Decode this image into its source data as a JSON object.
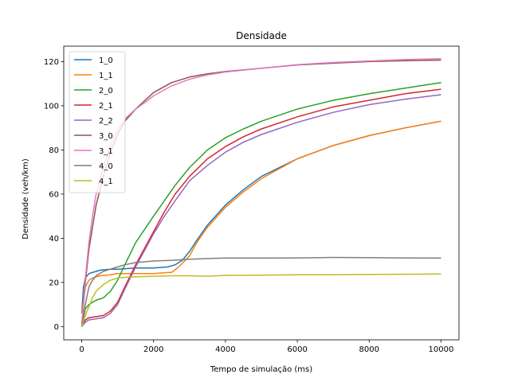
{
  "chart_data": {
    "type": "line",
    "title": "Densidade",
    "xlabel": "Tempo de simulação (ms)",
    "ylabel": "Densidade (veh/km)",
    "xlim": [
      -500,
      10500
    ],
    "ylim": [
      -6,
      127
    ],
    "xticks": [
      0,
      2000,
      4000,
      6000,
      8000,
      10000
    ],
    "yticks": [
      0,
      20,
      40,
      60,
      80,
      100,
      120
    ],
    "grid": false,
    "legend_position": "upper-left",
    "series": [
      {
        "name": "1_0",
        "color": "#1f77b4",
        "x": [
          0,
          50,
          100,
          200,
          300,
          500,
          800,
          1000,
          1500,
          2000,
          2400,
          2600,
          2800,
          3000,
          3200,
          3500,
          4000,
          4500,
          5000,
          6000,
          7000,
          8000,
          9000,
          10000
        ],
        "y": [
          6,
          18,
          22,
          24,
          24.5,
          25.5,
          26,
          26,
          26.5,
          26.5,
          27,
          28,
          30,
          34,
          39,
          46,
          55,
          62,
          68,
          76,
          82,
          86.5,
          90,
          93
        ]
      },
      {
        "name": "1_1",
        "color": "#ff7f0e",
        "x": [
          0,
          50,
          100,
          200,
          300,
          500,
          800,
          1000,
          1500,
          2000,
          2400,
          2500,
          2700,
          3000,
          3200,
          3500,
          4000,
          4500,
          5000,
          6000,
          7000,
          8000,
          9000,
          10000
        ],
        "y": [
          6,
          12,
          18,
          21,
          22,
          23,
          23.5,
          24,
          24,
          24,
          24.5,
          24.5,
          27,
          32,
          38,
          45,
          54,
          61,
          67,
          76,
          82,
          86.5,
          90,
          93
        ]
      },
      {
        "name": "2_0",
        "color": "#2ca02c",
        "x": [
          0,
          100,
          200,
          400,
          600,
          800,
          1000,
          1200,
          1500,
          2000,
          2300,
          2600,
          3000,
          3500,
          4000,
          4500,
          5000,
          6000,
          7000,
          8000,
          9000,
          10000
        ],
        "y": [
          0,
          8,
          10,
          12,
          13,
          16,
          21,
          28,
          38,
          50,
          57,
          64,
          72,
          80,
          85.5,
          89.5,
          93,
          98.5,
          102.5,
          105.5,
          108,
          110.5
        ]
      },
      {
        "name": "2_1",
        "color": "#d62728",
        "x": [
          0,
          100,
          200,
          400,
          600,
          800,
          1000,
          1200,
          1500,
          2000,
          2300,
          2600,
          3000,
          3500,
          4000,
          4500,
          5000,
          6000,
          7000,
          8000,
          9000,
          10000
        ],
        "y": [
          0,
          3,
          4,
          4.5,
          5,
          7,
          11,
          18,
          28,
          43,
          52,
          60,
          68,
          76,
          81.5,
          86,
          89.5,
          95,
          99.5,
          102.5,
          105.5,
          107.5
        ]
      },
      {
        "name": "2_2",
        "color": "#9467bd",
        "x": [
          0,
          100,
          200,
          400,
          600,
          800,
          1000,
          1200,
          1500,
          2000,
          2300,
          2600,
          3000,
          3500,
          4000,
          4500,
          5000,
          6000,
          7000,
          8000,
          9000,
          10000
        ],
        "y": [
          0,
          2,
          3,
          3.5,
          4,
          6,
          10,
          17,
          27,
          42,
          50,
          57,
          66,
          73,
          79,
          83.5,
          87,
          92.5,
          97,
          100.5,
          103,
          105
        ]
      },
      {
        "name": "3_0",
        "color": "#8c564b",
        "x": [
          0,
          100,
          200,
          300,
          400,
          600,
          800,
          1000,
          1200,
          1500,
          1800,
          2000,
          2500,
          3000,
          3500,
          4000,
          5000,
          6000,
          7000,
          8000,
          9000,
          10000
        ],
        "y": [
          0,
          20,
          35,
          45,
          55,
          68,
          79,
          87,
          93,
          98.5,
          103,
          106,
          110.5,
          113,
          114.5,
          115.5,
          117,
          118.5,
          119.3,
          120,
          120.4,
          120.7
        ]
      },
      {
        "name": "3_1",
        "color": "#e377c2",
        "x": [
          0,
          100,
          200,
          300,
          400,
          600,
          800,
          1000,
          1200,
          1500,
          1800,
          2000,
          2500,
          3000,
          3500,
          4000,
          5000,
          6000,
          7000,
          8000,
          9000,
          10000
        ],
        "y": [
          0,
          22,
          38,
          50,
          60,
          72,
          82,
          89,
          94,
          98.5,
          102,
          104.5,
          109,
          112,
          114,
          115.3,
          117,
          118.6,
          119.6,
          120.3,
          120.9,
          121.3
        ]
      },
      {
        "name": "4_0",
        "color": "#7f7f7f",
        "x": [
          0,
          100,
          200,
          300,
          400,
          600,
          800,
          1000,
          1200,
          1500,
          2000,
          2500,
          3000,
          3500,
          4000,
          5000,
          6000,
          7000,
          8000,
          9000,
          10000
        ],
        "y": [
          0,
          10,
          18,
          21,
          23,
          25,
          26,
          27,
          28,
          29,
          29.7,
          30,
          30.5,
          30.8,
          31,
          31,
          31.1,
          31.3,
          31.2,
          31.1,
          31
        ]
      },
      {
        "name": "4_1",
        "color": "#bcbd22",
        "x": [
          0,
          100,
          200,
          300,
          400,
          600,
          800,
          1000,
          1200,
          1500,
          2000,
          2500,
          3000,
          3500,
          4000,
          5000,
          6000,
          7000,
          8000,
          9000,
          10000
        ],
        "y": [
          0,
          5,
          9,
          13,
          16,
          19,
          21,
          22,
          22.3,
          22.6,
          22.8,
          23,
          23,
          22.8,
          23.2,
          23.3,
          23.5,
          23.5,
          23.6,
          23.7,
          23.8
        ]
      }
    ]
  }
}
